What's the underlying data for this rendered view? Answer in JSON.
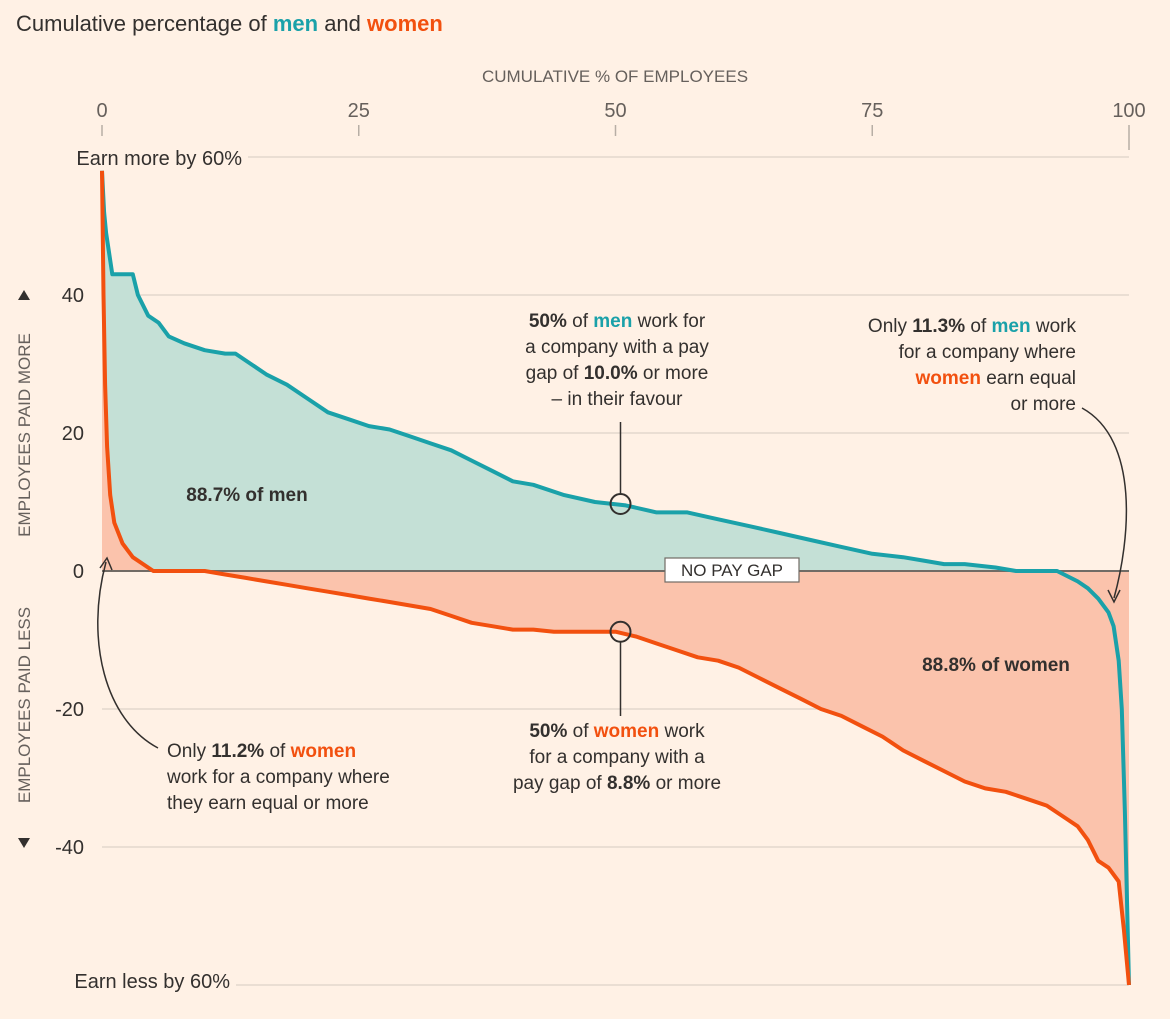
{
  "colors": {
    "men": "#1aa1a9",
    "women": "#f2500f",
    "men_fill": "#c4e0d6",
    "women_fill": "#fbc3ac",
    "background": "#fff1e5",
    "text": "#33302e",
    "muted": "#66605c",
    "grid": "#e3d8cd",
    "baseline": "#716b65"
  },
  "title": {
    "prefix": "Cumulative percentage of ",
    "men": "men",
    "and": " and ",
    "women": "women"
  },
  "chart_data": {
    "type": "area",
    "title": "Cumulative percentage of men and women",
    "xlabel": "CUMULATIVE % OF EMPLOYEES",
    "ylabel_top": "EMPLOYEES PAID MORE",
    "ylabel_bottom": "EMPLOYEES PAID LESS",
    "xlim": [
      0,
      100
    ],
    "ylim": [
      -60,
      60
    ],
    "x_ticks": [
      0,
      25,
      50,
      75,
      100
    ],
    "y_ticks": [
      40,
      20,
      0,
      -20,
      -40
    ],
    "x_tick_labels": [
      "0",
      "25",
      "50",
      "75",
      "100"
    ],
    "y_tick_labels": [
      "40",
      "20",
      "0",
      "-20",
      "-40"
    ],
    "top_label": "Earn more by 60%",
    "bottom_label": "Earn less by 60%",
    "zero_label": "NO PAY GAP",
    "grid": true,
    "series": [
      {
        "name": "men",
        "x": [
          0,
          0.2,
          0.4,
          0.7,
          1,
          3,
          3.5,
          4.5,
          5.5,
          6.5,
          8,
          10,
          12,
          13,
          14.5,
          16,
          18,
          20,
          22,
          24,
          26,
          28,
          30,
          32,
          34,
          36,
          38,
          40,
          42,
          45,
          48,
          51,
          54,
          57,
          60,
          63,
          66,
          69,
          72,
          75,
          78,
          80,
          82,
          84,
          87,
          89,
          91,
          93,
          95,
          96,
          97,
          98,
          98.5,
          99,
          99.3,
          99.6,
          100
        ],
        "y": [
          58,
          52,
          49,
          46,
          43,
          43,
          40,
          37,
          36,
          34,
          33,
          32,
          31.5,
          31.5,
          30,
          28.5,
          27,
          25,
          23,
          22,
          21,
          20.5,
          19.5,
          18.5,
          17.5,
          16,
          14.5,
          13,
          12.5,
          11,
          10,
          9.5,
          8.5,
          8.5,
          7.5,
          6.5,
          5.5,
          4.5,
          3.5,
          2.5,
          2,
          1.5,
          1,
          1,
          0.5,
          0,
          0,
          0,
          -1.5,
          -2.5,
          -4,
          -6,
          -8,
          -13,
          -20,
          -35,
          -60
        ]
      },
      {
        "name": "women",
        "x": [
          0,
          0.15,
          0.3,
          0.5,
          0.8,
          1.2,
          2,
          3,
          4,
          5,
          10,
          12,
          14,
          16,
          18,
          20,
          22,
          24,
          26,
          28,
          30,
          32,
          34,
          36,
          38,
          40,
          42,
          44,
          46,
          48,
          50,
          52,
          54,
          56,
          58,
          60,
          62,
          64,
          66,
          68,
          70,
          72,
          74,
          76,
          78,
          80,
          82,
          84,
          86,
          88,
          90,
          92,
          94,
          95,
          96,
          97,
          98,
          99,
          99.5,
          100
        ],
        "y": [
          58,
          40,
          27,
          18,
          11,
          7,
          4,
          2,
          1,
          0,
          0,
          -0.5,
          -1,
          -1.5,
          -2,
          -2.5,
          -3,
          -3.5,
          -4,
          -4.5,
          -5,
          -5.5,
          -6.5,
          -7.5,
          -8,
          -8.5,
          -8.5,
          -8.8,
          -8.8,
          -8.8,
          -8.8,
          -9.5,
          -10.5,
          -11.5,
          -12.5,
          -13,
          -14,
          -15.5,
          -17,
          -18.5,
          -20,
          -21,
          -22.5,
          -24,
          -26,
          -27.5,
          -29,
          -30.5,
          -31.5,
          -32,
          -33,
          -34,
          -36,
          -37,
          -39,
          -42,
          -43,
          -45,
          -52,
          -60
        ]
      }
    ],
    "annotations": {
      "men_area": "88.7% of men",
      "women_area": "88.8% of women",
      "men_median": {
        "p1_bold": "50%",
        "p1_of": " of ",
        "men": "men",
        "p1_end": " work for",
        "line2": "a company with a pay",
        "line3_a": "gap of ",
        "line3_bold": "10.0%",
        "line3_b": " or  more",
        "line4": "– in their favour"
      },
      "men_only": {
        "a": "Only ",
        "bold": "11.3%",
        "of": " of ",
        "men": "men",
        "end": " work",
        "line2": "for a company where",
        "women": "women",
        "line3_end": " earn equal",
        "line4": "or more"
      },
      "women_median": {
        "p1_bold": "50%",
        "p1_of": " of ",
        "women": "women",
        "p1_end": " work",
        "line2": "for a company with a",
        "line3_a": "pay gap of ",
        "line3_bold": "8.8%",
        "line3_b": " or more"
      },
      "women_only": {
        "a": "Only ",
        "bold": "11.2%",
        "of": " of ",
        "women": "women",
        "line2": "work for a company where",
        "line3": "they earn equal or more"
      },
      "median_points": {
        "men": {
          "x": 50,
          "y": 10
        },
        "women": {
          "x": 50,
          "y": -8.8
        }
      }
    }
  }
}
